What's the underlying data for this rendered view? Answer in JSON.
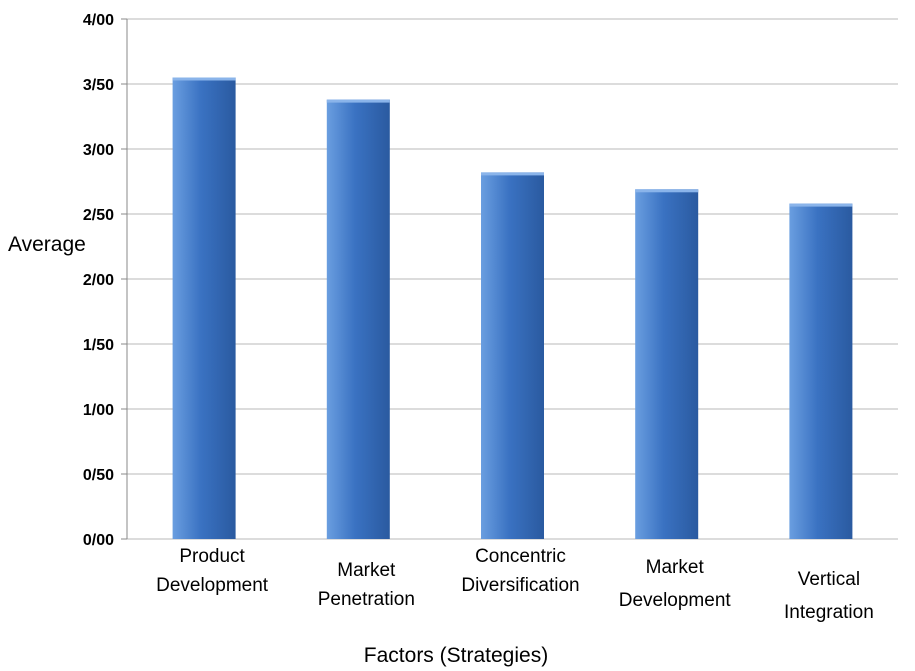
{
  "chart_data": {
    "type": "bar",
    "title": "",
    "xlabel": "Factors (Strategies)",
    "ylabel": "Average",
    "ylim": [
      0,
      4
    ],
    "yticks": [
      {
        "value": 0,
        "label": "0/00"
      },
      {
        "value": 0.5,
        "label": "0/50"
      },
      {
        "value": 1,
        "label": "1/00"
      },
      {
        "value": 1.5,
        "label": "1/50"
      },
      {
        "value": 2,
        "label": "2/00"
      },
      {
        "value": 2.5,
        "label": "2/50"
      },
      {
        "value": 3,
        "label": "3/00"
      },
      {
        "value": 3.5,
        "label": "3/50"
      },
      {
        "value": 4,
        "label": "4/00"
      }
    ],
    "categories": [
      [
        "Product",
        "Development"
      ],
      [
        "Market",
        "Penetration"
      ],
      [
        "Concentric",
        "Diversification"
      ],
      [
        "Market",
        "Development"
      ],
      [
        "Vertical",
        "Integration"
      ]
    ],
    "values": [
      3.55,
      3.38,
      2.82,
      2.69,
      2.58
    ],
    "grid": true,
    "legend": "none",
    "colors": {
      "bar_light": "#6a9ee0",
      "bar_mid": "#3a72c2",
      "bar_dark": "#2a5aa0",
      "bar_top": "#8ab4ea",
      "grid": "#b8b8b8",
      "axis": "#888888"
    }
  }
}
